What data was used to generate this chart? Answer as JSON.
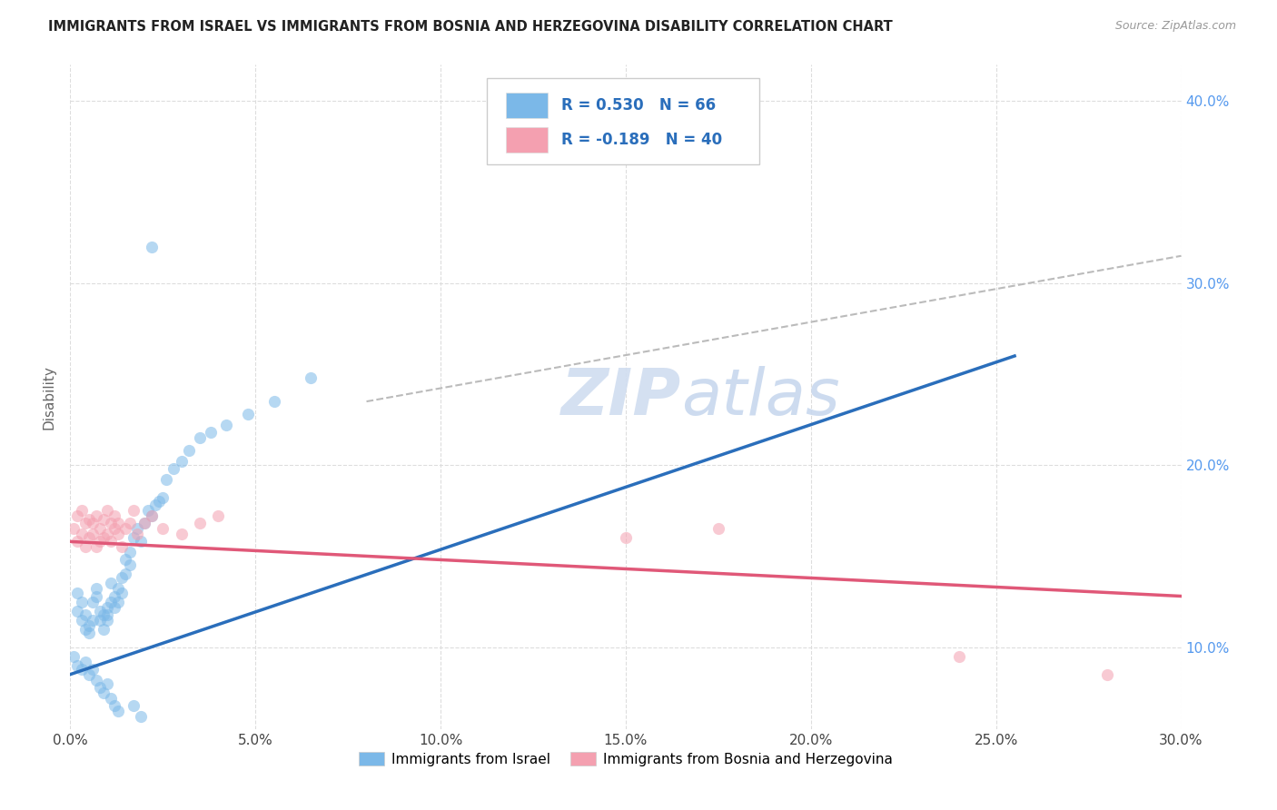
{
  "title": "IMMIGRANTS FROM ISRAEL VS IMMIGRANTS FROM BOSNIA AND HERZEGOVINA DISABILITY CORRELATION CHART",
  "source": "Source: ZipAtlas.com",
  "ylabel": "Disability",
  "color_blue": "#7bb8e8",
  "color_pink": "#f4a0b0",
  "color_blue_line": "#2a6ebb",
  "color_pink_line": "#e05878",
  "color_dashed": "#bbbbbb",
  "watermark_zip": "ZIP",
  "watermark_atlas": "atlas",
  "xlim": [
    0.0,
    0.3
  ],
  "ylim": [
    0.055,
    0.42
  ],
  "x_ticks": [
    0.0,
    0.05,
    0.1,
    0.15,
    0.2,
    0.25,
    0.3
  ],
  "x_tick_labels": [
    "0.0%",
    "5.0%",
    "10.0%",
    "15.0%",
    "20.0%",
    "25.0%",
    "30.0%"
  ],
  "y_ticks": [
    0.1,
    0.2,
    0.3,
    0.4
  ],
  "y_tick_labels": [
    "10.0%",
    "20.0%",
    "30.0%",
    "40.0%"
  ],
  "r_israel": "0.530",
  "n_israel": "66",
  "r_bosnia": "-0.189",
  "n_bosnia": "40",
  "israel_x": [
    0.002,
    0.002,
    0.003,
    0.003,
    0.004,
    0.004,
    0.005,
    0.005,
    0.006,
    0.006,
    0.007,
    0.007,
    0.008,
    0.008,
    0.009,
    0.009,
    0.01,
    0.01,
    0.01,
    0.011,
    0.011,
    0.012,
    0.012,
    0.013,
    0.013,
    0.014,
    0.014,
    0.015,
    0.015,
    0.016,
    0.016,
    0.017,
    0.018,
    0.019,
    0.02,
    0.021,
    0.022,
    0.023,
    0.024,
    0.025,
    0.026,
    0.028,
    0.03,
    0.032,
    0.035,
    0.038,
    0.042,
    0.048,
    0.055,
    0.065,
    0.001,
    0.002,
    0.003,
    0.004,
    0.005,
    0.006,
    0.007,
    0.008,
    0.009,
    0.01,
    0.011,
    0.012,
    0.013,
    0.017,
    0.019,
    0.022
  ],
  "israel_y": [
    0.13,
    0.12,
    0.115,
    0.125,
    0.11,
    0.118,
    0.112,
    0.108,
    0.115,
    0.125,
    0.128,
    0.132,
    0.12,
    0.115,
    0.118,
    0.11,
    0.115,
    0.118,
    0.122,
    0.125,
    0.135,
    0.128,
    0.122,
    0.132,
    0.125,
    0.138,
    0.13,
    0.148,
    0.14,
    0.152,
    0.145,
    0.16,
    0.165,
    0.158,
    0.168,
    0.175,
    0.172,
    0.178,
    0.18,
    0.182,
    0.192,
    0.198,
    0.202,
    0.208,
    0.215,
    0.218,
    0.222,
    0.228,
    0.235,
    0.248,
    0.095,
    0.09,
    0.088,
    0.092,
    0.085,
    0.088,
    0.082,
    0.078,
    0.075,
    0.08,
    0.072,
    0.068,
    0.065,
    0.068,
    0.062,
    0.32
  ],
  "bosnia_x": [
    0.001,
    0.002,
    0.002,
    0.003,
    0.003,
    0.004,
    0.004,
    0.005,
    0.005,
    0.006,
    0.006,
    0.007,
    0.007,
    0.008,
    0.008,
    0.009,
    0.009,
    0.01,
    0.01,
    0.011,
    0.011,
    0.012,
    0.012,
    0.013,
    0.013,
    0.014,
    0.015,
    0.016,
    0.017,
    0.018,
    0.02,
    0.022,
    0.025,
    0.03,
    0.035,
    0.04,
    0.15,
    0.175,
    0.24,
    0.28
  ],
  "bosnia_y": [
    0.165,
    0.158,
    0.172,
    0.162,
    0.175,
    0.168,
    0.155,
    0.17,
    0.16,
    0.162,
    0.168,
    0.155,
    0.172,
    0.158,
    0.165,
    0.16,
    0.17,
    0.162,
    0.175,
    0.168,
    0.158,
    0.165,
    0.172,
    0.162,
    0.168,
    0.155,
    0.165,
    0.168,
    0.175,
    0.162,
    0.168,
    0.172,
    0.165,
    0.162,
    0.168,
    0.172,
    0.16,
    0.165,
    0.095,
    0.085
  ],
  "blue_line_x": [
    0.0,
    0.255
  ],
  "blue_line_y": [
    0.085,
    0.26
  ],
  "pink_line_x": [
    0.0,
    0.3
  ],
  "pink_line_y": [
    0.158,
    0.128
  ],
  "dashed_line_x": [
    0.08,
    0.3
  ],
  "dashed_line_y": [
    0.235,
    0.315
  ]
}
